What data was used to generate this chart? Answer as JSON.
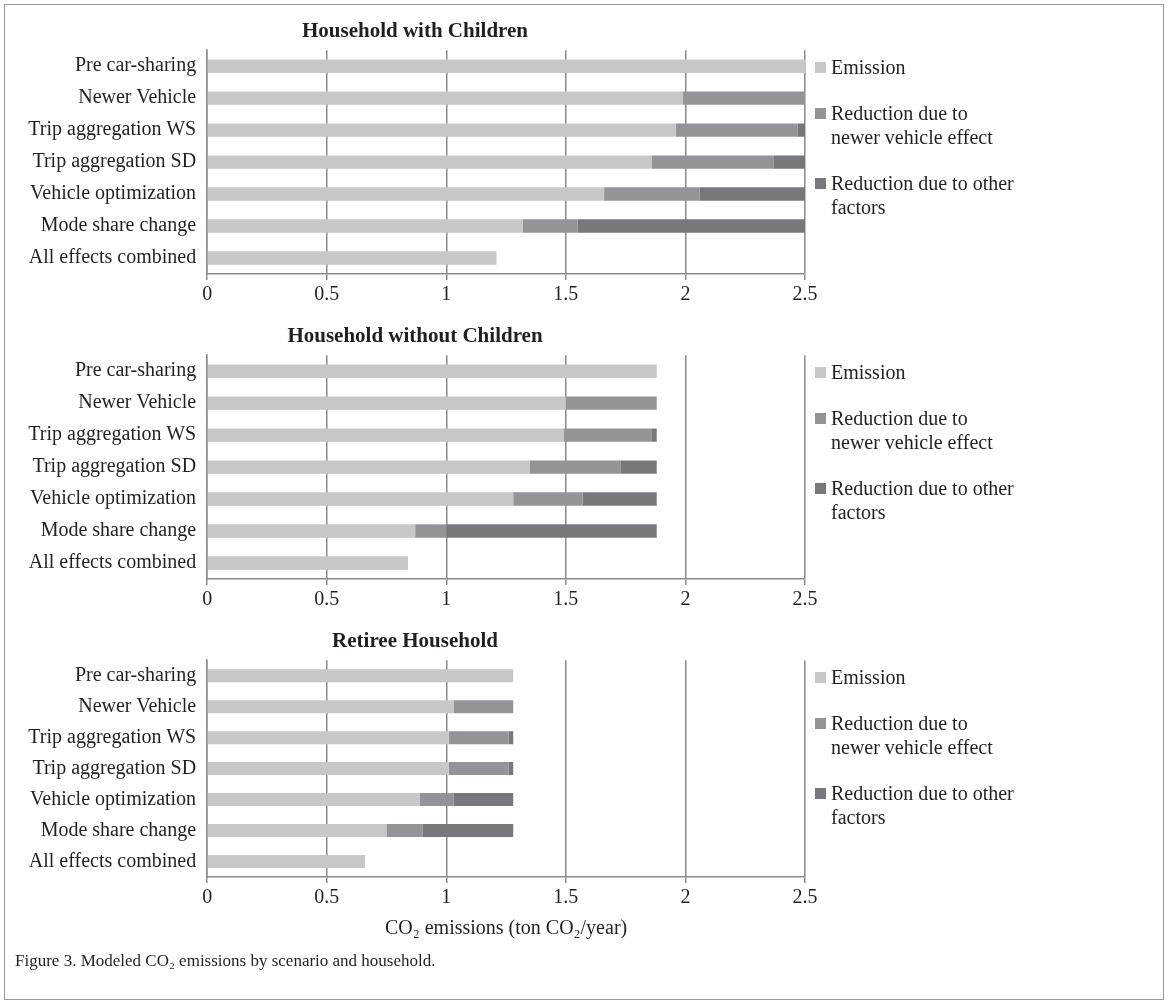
{
  "chart_data": [
    {
      "type": "bar",
      "title": "Household with Children",
      "orientation": "horizontal",
      "stacked": true,
      "categories": [
        "Pre car-sharing",
        "Newer Vehicle",
        "Trip aggregation WS",
        "Trip aggregation SD",
        "Vehicle optimization",
        "Mode share change",
        "All effects combined"
      ],
      "series": [
        {
          "name": "Emission",
          "color": "#c6c7c9",
          "values": [
            2.5,
            1.99,
            1.96,
            1.86,
            1.66,
            1.32,
            1.21
          ]
        },
        {
          "name": "Reduction due to newer vehicle effect",
          "color": "#939498",
          "values": [
            null,
            0.51,
            0.51,
            0.51,
            0.4,
            0.23,
            null
          ]
        },
        {
          "name": "Reduction due to other factors",
          "color": "#77787c",
          "values": [
            null,
            null,
            0.03,
            0.13,
            0.44,
            0.95,
            null
          ]
        }
      ],
      "xlim": [
        0,
        2.5
      ],
      "xticks": [
        0,
        0.5,
        1,
        1.5,
        2,
        2.5
      ],
      "grid": "x",
      "legend": "right"
    },
    {
      "type": "bar",
      "title": "Household without Children",
      "orientation": "horizontal",
      "stacked": true,
      "categories": [
        "Pre car-sharing",
        "Newer Vehicle",
        "Trip aggregation WS",
        "Trip aggregation SD",
        "Vehicle optimization",
        "Mode share change",
        "All effects combined"
      ],
      "series": [
        {
          "name": "Emission",
          "color": "#c6c7c9",
          "values": [
            1.88,
            1.5,
            1.49,
            1.35,
            1.28,
            0.87,
            0.84
          ]
        },
        {
          "name": "Reduction due to newer vehicle effect",
          "color": "#939498",
          "values": [
            null,
            0.38,
            0.37,
            0.38,
            0.29,
            0.13,
            null
          ]
        },
        {
          "name": "Reduction due to other factors",
          "color": "#77787c",
          "values": [
            null,
            null,
            0.02,
            0.15,
            0.31,
            0.88,
            null
          ]
        }
      ],
      "xlim": [
        0,
        2.5
      ],
      "xticks": [
        0,
        0.5,
        1,
        1.5,
        2,
        2.5
      ],
      "grid": "x",
      "legend": "right"
    },
    {
      "type": "bar",
      "title": "Retiree Household",
      "xlabel": "CO₂ emissions (ton CO₂/year)",
      "orientation": "horizontal",
      "stacked": true,
      "categories": [
        "Pre car-sharing",
        "Newer Vehicle",
        "Trip aggregation WS",
        "Trip aggregation SD",
        "Vehicle optimization",
        "Mode share change",
        "All effects combined"
      ],
      "series": [
        {
          "name": "Emission",
          "color": "#c6c7c9",
          "values": [
            1.28,
            1.03,
            1.01,
            1.01,
            0.89,
            0.75,
            0.66
          ]
        },
        {
          "name": "Reduction due to newer vehicle effect",
          "color": "#939498",
          "values": [
            null,
            0.25,
            0.25,
            0.25,
            0.14,
            0.15,
            null
          ]
        },
        {
          "name": "Reduction due to other factors",
          "color": "#77787c",
          "values": [
            null,
            null,
            0.02,
            0.02,
            0.25,
            0.38,
            null
          ]
        }
      ],
      "xlim": [
        0,
        2.5
      ],
      "xticks": [
        0,
        0.5,
        1,
        1.5,
        2,
        2.5
      ],
      "grid": "x",
      "legend": "right",
      "annotations": [
        "Figure 3. Modeled CO₂ emissions by scenario and household."
      ]
    }
  ]
}
